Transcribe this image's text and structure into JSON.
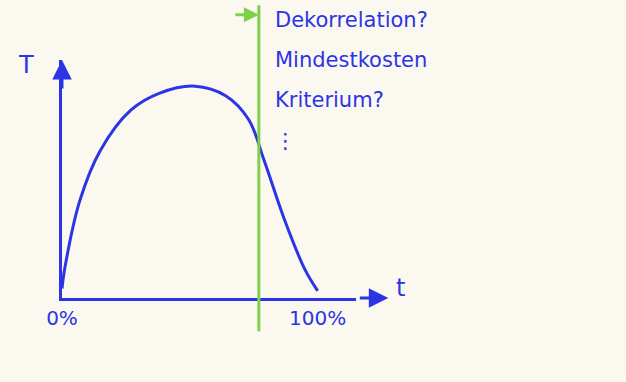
{
  "chart_data": {
    "type": "line",
    "x_label": "t",
    "y_label": "T",
    "x": [
      0,
      1,
      7,
      15,
      27,
      38,
      52,
      64,
      73,
      79,
      87,
      95,
      100
    ],
    "values": [
      4,
      12,
      41,
      62,
      79,
      86,
      89,
      85,
      75,
      58,
      33,
      12,
      3
    ],
    "color": "#2b35e6",
    "xlim": [
      0,
      115
    ],
    "ylim": [
      0,
      100
    ],
    "xticks": [
      {
        "value": 0,
        "label": "0%"
      },
      {
        "value": 100,
        "label": "100%"
      }
    ],
    "tick_labels": "x",
    "grid": false,
    "annotations": [
      {
        "x": 77,
        "color": "#7ed04a",
        "lines": [
          "Dekorrelation?",
          "Mindestkosten",
          "Kriterium?",
          "⋮"
        ]
      }
    ]
  }
}
